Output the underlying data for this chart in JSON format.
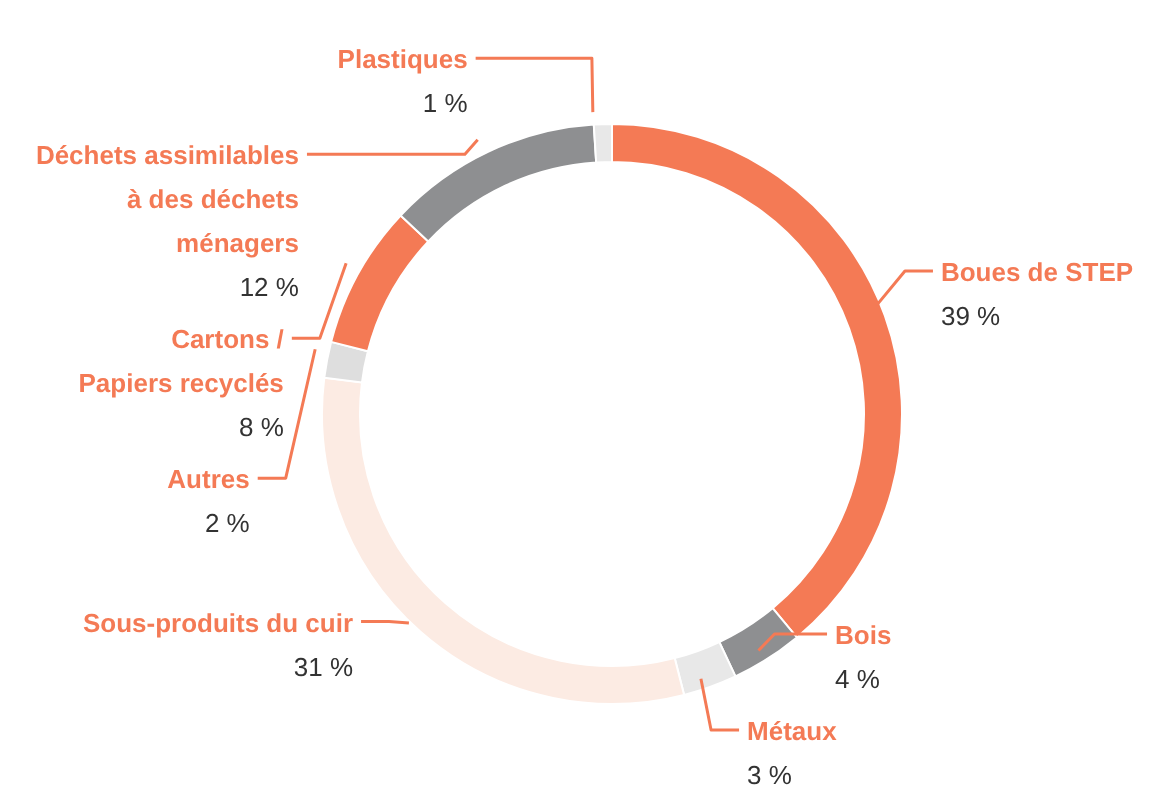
{
  "chart_data": {
    "type": "donut",
    "categories": [
      "Boues de STEP",
      "Bois",
      "Métaux",
      "Sous-produits du cuir",
      "Autres",
      "Cartons /\nPapiers recyclés",
      "Déchets assimilables\nà des déchets\nménagers",
      "Plastiques"
    ],
    "values": [
      39,
      4,
      3,
      31,
      2,
      8,
      12,
      1
    ],
    "value_labels": [
      "39 %",
      "4 %",
      "3 %",
      "31 %",
      "2 %",
      "8 %",
      "12 %",
      "1 %"
    ],
    "colors": [
      "#f47a55",
      "#8e8f91",
      "#e8e8e8",
      "#fcebe3",
      "#dedede",
      "#f47a55",
      "#8e8f91",
      "#e8e8e8"
    ],
    "legend": false
  }
}
